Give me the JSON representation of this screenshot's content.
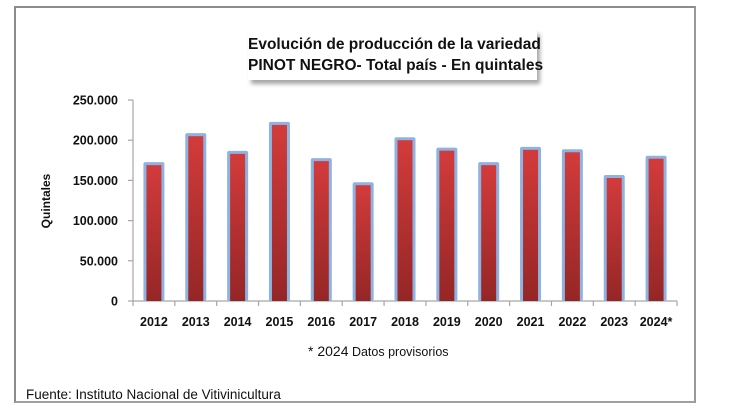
{
  "chart_data": {
    "type": "bar",
    "title": [
      "Evolución de producción de la variedad",
      "PINOT NEGRO- Total país - En quintales"
    ],
    "xlabel": "",
    "ylabel": "Quintales",
    "categories": [
      "2012",
      "2013",
      "2014",
      "2015",
      "2016",
      "2017",
      "2018",
      "2019",
      "2020",
      "2021",
      "2022",
      "2023",
      "2024*"
    ],
    "values": [
      169000,
      205000,
      183000,
      219000,
      174000,
      144000,
      200000,
      187000,
      169000,
      188000,
      185000,
      153000,
      177000
    ],
    "ylim": [
      0,
      250000
    ],
    "yticks": [
      0,
      50000,
      100000,
      150000,
      200000,
      250000
    ],
    "ytick_labels": [
      "0",
      "50.000",
      "100.000",
      "150.000",
      "200.000",
      "250.000"
    ],
    "grid": false,
    "legend": "none",
    "colors": {
      "bar_top": "#d33b3b",
      "bar_bottom": "#952626",
      "bar_glow": "#8eb3e2",
      "axis": "#a6a6a6"
    }
  },
  "footnote": {
    "prefix": "* 2024",
    "text": " Datos provisorios"
  },
  "source": "Fuente: Instituto Nacional de Vitivinicultura"
}
